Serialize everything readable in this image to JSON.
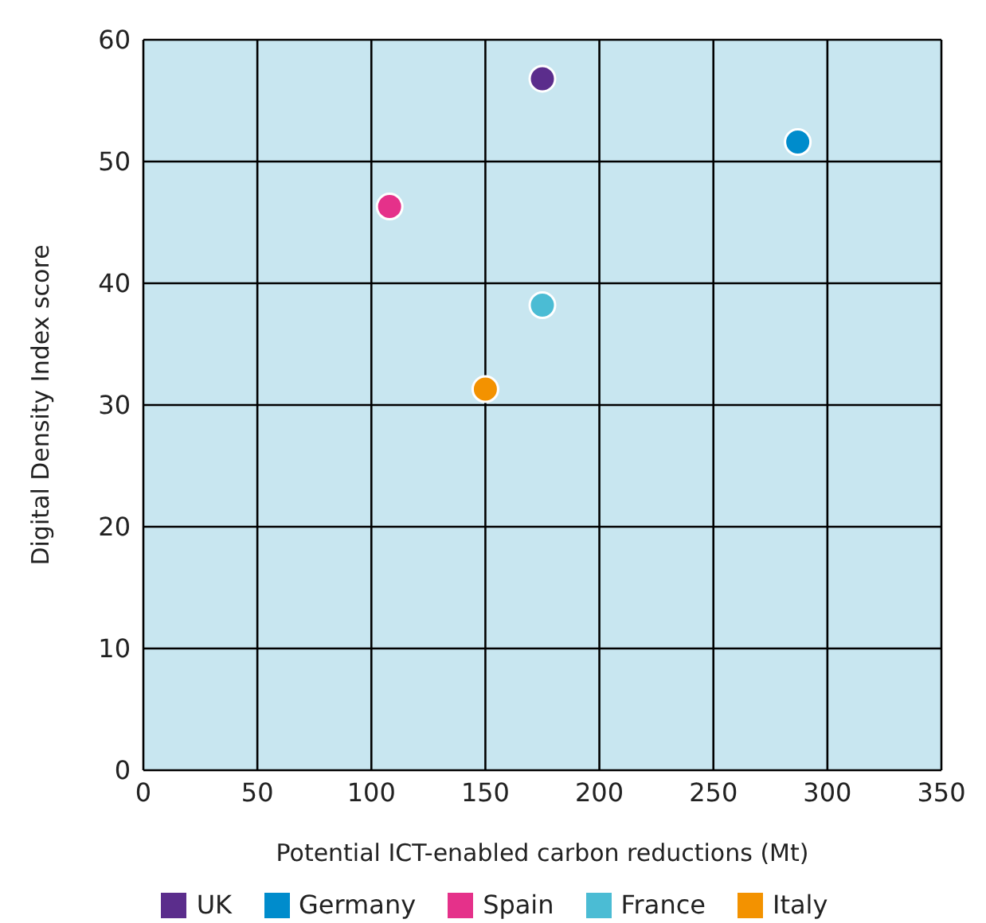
{
  "chart_data": {
    "type": "scatter",
    "xlabel": "Potential ICT-enabled carbon reductions (Mt)",
    "ylabel": "Digital Density Index score",
    "xlim": [
      0,
      350
    ],
    "xticks": [
      0,
      50,
      100,
      150,
      200,
      250,
      300,
      350
    ],
    "ylim": [
      0,
      60
    ],
    "yticks": [
      0,
      10,
      20,
      30,
      40,
      50,
      60
    ],
    "grid": true,
    "legend": "bottom",
    "marker": "circle",
    "series": [
      {
        "name": "UK",
        "color": "#5b2d8c",
        "x": [
          175
        ],
        "values": [
          56.8
        ]
      },
      {
        "name": "Germany",
        "color": "#008ccc",
        "x": [
          287
        ],
        "values": [
          51.6
        ]
      },
      {
        "name": "Spain",
        "color": "#e5318a",
        "x": [
          108
        ],
        "values": [
          46.3
        ]
      },
      {
        "name": "France",
        "color": "#4bbcd4",
        "x": [
          175
        ],
        "values": [
          38.2
        ]
      },
      {
        "name": "Italy",
        "color": "#f39200",
        "x": [
          150
        ],
        "values": [
          31.3
        ]
      }
    ]
  }
}
